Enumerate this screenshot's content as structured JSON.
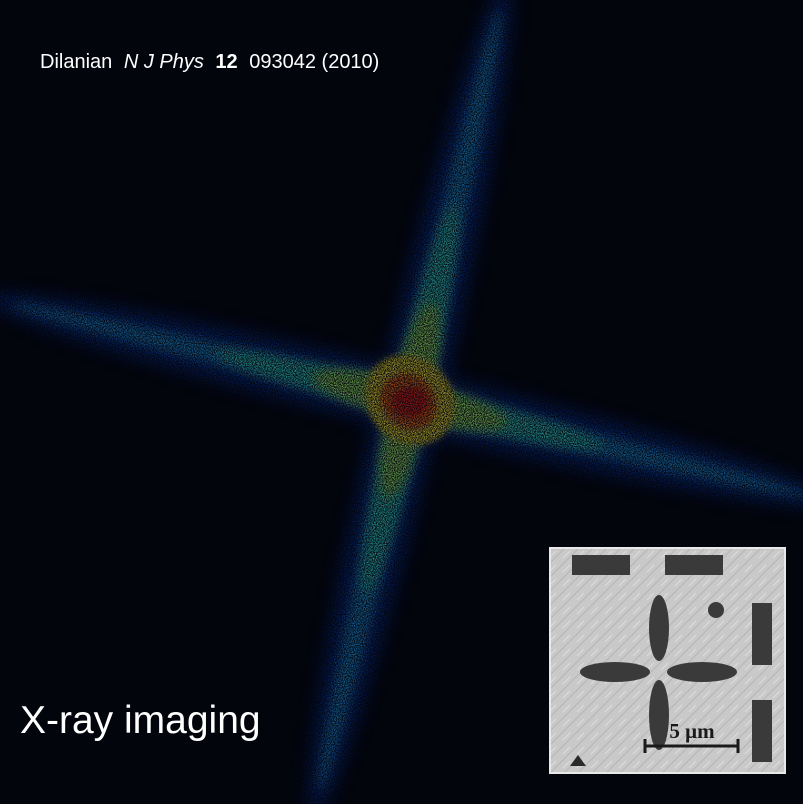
{
  "citation": {
    "author": "Dilanian",
    "journal": "N J Phys",
    "volume": "12",
    "article": "093042 (2010)"
  },
  "caption": "X-ray imaging",
  "inset": {
    "scale_label": "5 μm"
  }
}
